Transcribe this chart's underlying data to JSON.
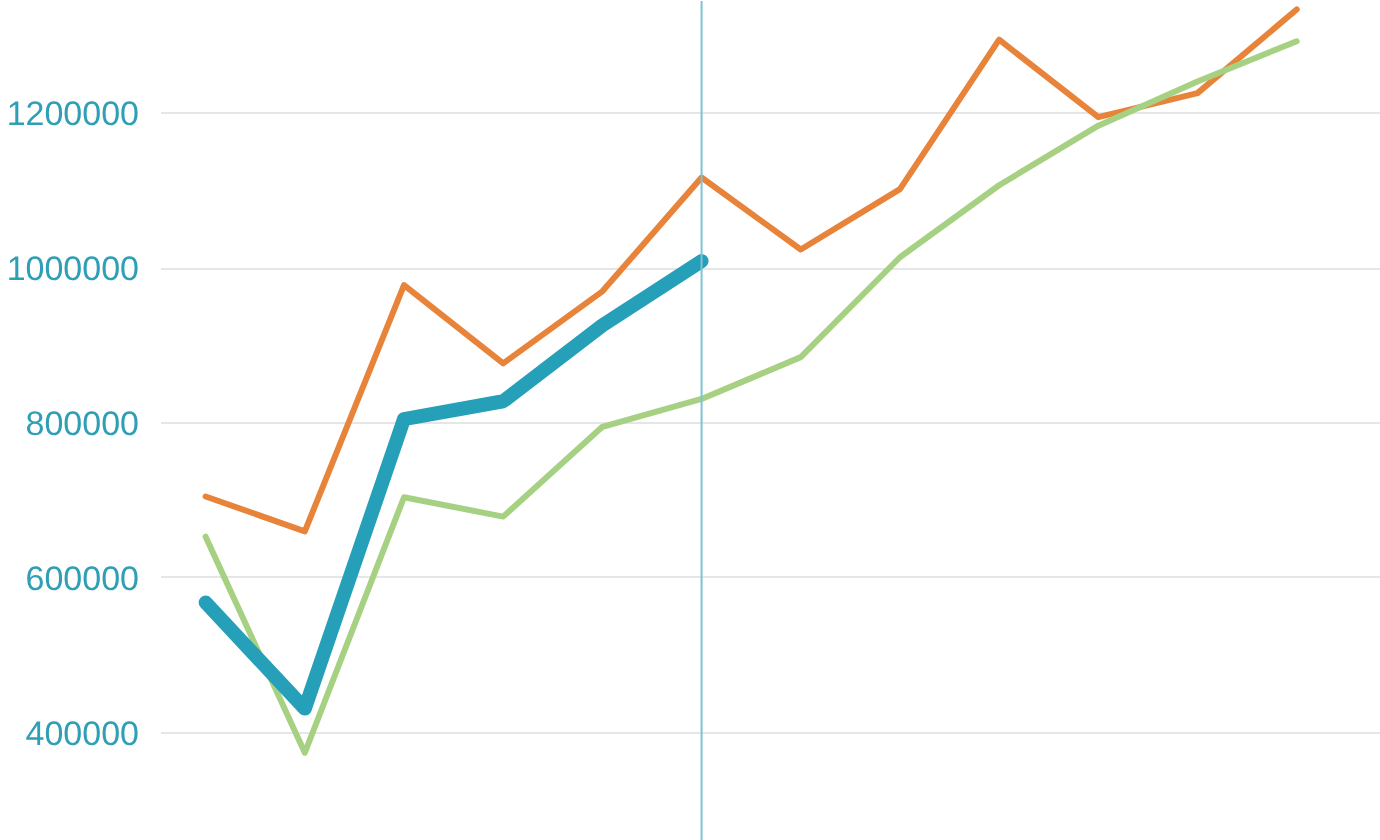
{
  "chart_data": {
    "type": "line",
    "categories": [
      null,
      null,
      null,
      null,
      null,
      null,
      null,
      null,
      null,
      null,
      null,
      null
    ],
    "series": [
      {
        "color": "#e8833a",
        "values": [
          705000,
          660000,
          978000,
          877000,
          970000,
          1117000,
          1024000,
          1102000,
          1295000,
          1195000,
          1226000,
          1334000
        ]
      },
      {
        "color": "#a6d182",
        "values": [
          653000,
          374000,
          704000,
          679000,
          795000,
          831000,
          885000,
          1014000,
          1107000,
          1184000,
          1241000,
          1293000
        ]
      },
      {
        "color": "#26a0b8",
        "values": [
          568000,
          431000,
          805000,
          828000,
          926000,
          1009000,
          null,
          null,
          null,
          null,
          null,
          null
        ]
      }
    ],
    "ylim": [
      260000,
      1345000
    ],
    "yticks": [
      400000,
      600000,
      800000,
      1000000,
      1200000
    ],
    "grid": "y",
    "marker": "none",
    "line_style": "solid"
  }
}
